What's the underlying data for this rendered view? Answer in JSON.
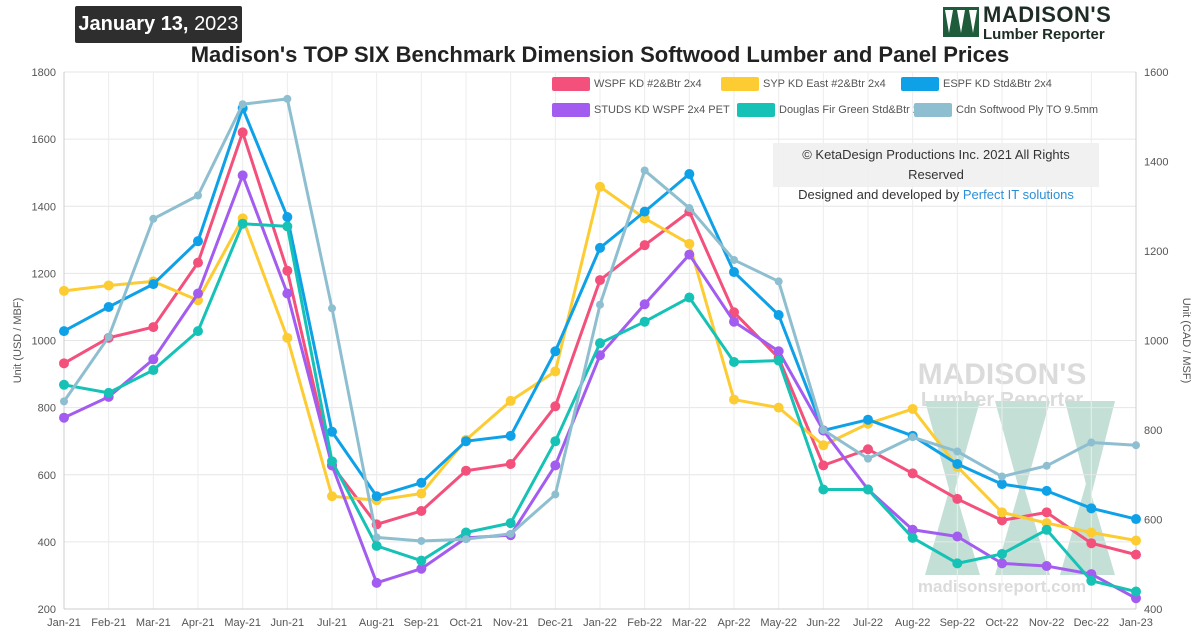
{
  "date_badge": {
    "day": "January 13,",
    "year": "2023"
  },
  "brand": {
    "main": "MADISON'S",
    "sub": "Lumber Reporter"
  },
  "title": "Madison's TOP SIX Benchmark Dimension Softwood Lumber and Panel Prices",
  "copyright": {
    "line1": "© KetaDesign Productions Inc. 2021 All Rights Reserved",
    "line2_prefix": "Designed and developed by ",
    "line2_link": "Perfect IT solutions"
  },
  "watermark": {
    "main": "MADISON'S",
    "sub": "Lumber Reporter",
    "url": "madisonsreport.com"
  },
  "colors": {
    "wspf": "#f4507c",
    "syp": "#fdcc33",
    "espf": "#0ea1e8",
    "studs": "#a35cf0",
    "dfir": "#16c2b5",
    "ply": "#8ebfd0"
  },
  "chart_data": {
    "type": "line",
    "title": "Madison's TOP SIX Benchmark Dimension Softwood Lumber and Panel Prices",
    "ylabel": "Unit (USD / MBF)",
    "y2label": "Unit (CAD / MSF)",
    "ylim": [
      200,
      1800
    ],
    "y2lim": [
      400,
      1600
    ],
    "yticks": [
      "200",
      "400",
      "600",
      "800",
      "1000",
      "1200",
      "1400",
      "1600",
      "1800"
    ],
    "y2ticks": [
      "400",
      "600",
      "800",
      "1000",
      "1200",
      "1400",
      "1600"
    ],
    "grid": true,
    "legend": "top-right",
    "categories": [
      "Jan-21",
      "Feb-21",
      "Mar-21",
      "Apr-21",
      "May-21",
      "Jun-21",
      "Jul-21",
      "Aug-21",
      "Sep-21",
      "Oct-21",
      "Nov-21",
      "Dec-21",
      "Jan-22",
      "Feb-22",
      "Mar-22",
      "Apr-22",
      "May-22",
      "Jun-22",
      "Jul-22",
      "Aug-22",
      "Sep-22",
      "Oct-22",
      "Nov-22",
      "Dec-22",
      "Jan-23"
    ],
    "series": [
      {
        "name": "WSPF KD #2&Btr 2x4",
        "key": "wspf",
        "axis": "left",
        "values": [
          932,
          1008,
          1040,
          1232,
          1620,
          1208,
          628,
          452,
          492,
          612,
          632,
          804,
          1180,
          1284,
          1384,
          1084,
          948,
          628,
          676,
          604,
          528,
          464,
          488,
          396,
          362
        ]
      },
      {
        "name": "SYP KD East #2&Btr 2x4",
        "key": "syp",
        "axis": "left",
        "values": [
          1148,
          1164,
          1176,
          1120,
          1364,
          1008,
          536,
          524,
          544,
          704,
          820,
          908,
          1458,
          1364,
          1288,
          824,
          800,
          688,
          752,
          796,
          624,
          488,
          456,
          428,
          404
        ]
      },
      {
        "name": "ESPF KD Std&Btr 2x4",
        "key": "espf",
        "axis": "left",
        "values": [
          1028,
          1100,
          1168,
          1296,
          1692,
          1368,
          728,
          536,
          576,
          700,
          716,
          968,
          1276,
          1384,
          1496,
          1204,
          1076,
          732,
          764,
          716,
          632,
          572,
          552,
          500,
          468
        ]
      },
      {
        "name": "STUDS KD WSPF 2x4 PET",
        "key": "studs",
        "axis": "left",
        "values": [
          770,
          832,
          944,
          1140,
          1492,
          1140,
          628,
          278,
          320,
          412,
          420,
          628,
          956,
          1108,
          1256,
          1056,
          968,
          732,
          556,
          436,
          416,
          336,
          328,
          304,
          232
        ]
      },
      {
        "name": "Douglas Fir Green Std&Btr 2x4",
        "key": "dfir",
        "axis": "left",
        "values": [
          868,
          844,
          912,
          1028,
          1348,
          1340,
          640,
          388,
          344,
          428,
          456,
          700,
          992,
          1056,
          1128,
          936,
          940,
          556,
          556,
          412,
          336,
          364,
          436,
          284,
          252
        ]
      },
      {
        "name": "Cdn Softwood Ply TO 9.5mm",
        "key": "ply",
        "axis": "right",
        "values": [
          864,
          1008,
          1272,
          1324,
          1528,
          1540,
          1072,
          560,
          552,
          556,
          568,
          656,
          1080,
          1380,
          1296,
          1180,
          1132,
          800,
          736,
          784,
          752,
          696,
          720,
          772,
          766
        ]
      }
    ]
  }
}
